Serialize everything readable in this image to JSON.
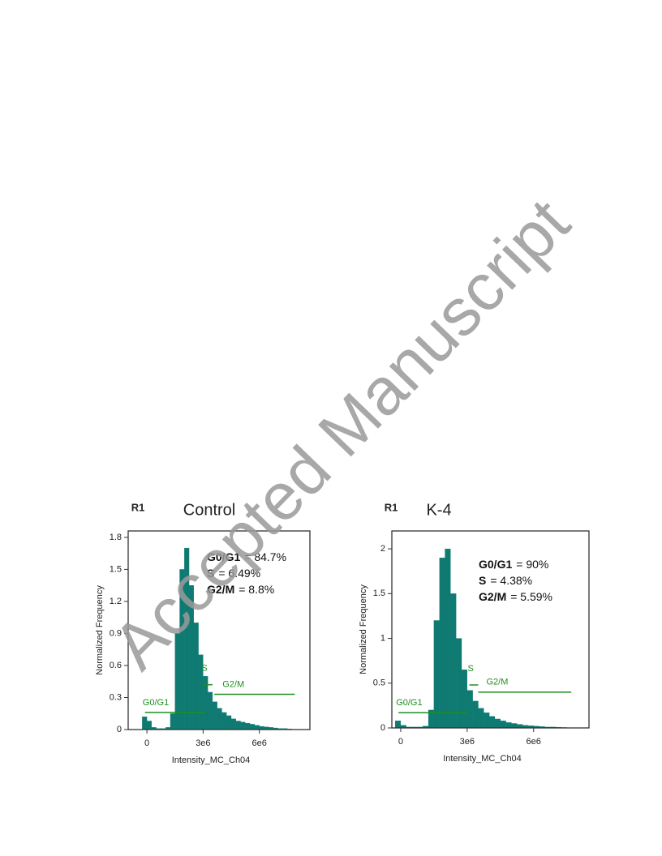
{
  "watermark": "Accepted Manuscript",
  "chart_data": [
    {
      "type": "histogram",
      "region": "R1",
      "title": "Control",
      "xlabel": "Intensity_MC_Ch04",
      "ylabel": "Normalized Frequency",
      "color": "#0e7a72",
      "gate_color": "#1f8f1f",
      "bins": [
        -250000,
        0,
        250000,
        500000,
        750000,
        1000000,
        1250000,
        1500000,
        1750000,
        2000000,
        2250000,
        2500000,
        2750000,
        3000000,
        3250000,
        3500000,
        3750000,
        4000000,
        4250000,
        4500000,
        4750000,
        5000000,
        5250000,
        5500000,
        5750000,
        6000000,
        6250000,
        6500000,
        6750000,
        7000000,
        7250000,
        7500000,
        7750000
      ],
      "counts": [
        0.12,
        0.08,
        0.02,
        0.01,
        0.01,
        0.02,
        0.15,
        0.9,
        1.5,
        1.7,
        1.35,
        1.0,
        0.7,
        0.5,
        0.35,
        0.26,
        0.2,
        0.16,
        0.13,
        0.1,
        0.08,
        0.07,
        0.06,
        0.05,
        0.04,
        0.03,
        0.025,
        0.02,
        0.015,
        0.01,
        0.01,
        0.005
      ],
      "xlim": [
        -1000000,
        8700000
      ],
      "ylim": [
        0,
        1.86
      ],
      "xticks": [
        0,
        {
          "value": 3000000,
          "label": "3e6"
        },
        {
          "value": 6000000,
          "label": "6e6"
        }
      ],
      "yticks": [
        0,
        0.3,
        0.6,
        0.9,
        1.2,
        1.5,
        1.8
      ],
      "gates": [
        {
          "label": "G0/G1",
          "x": [
            -100000,
            3100000
          ],
          "y": 0.16
        },
        {
          "label": "S",
          "x": [
            3000000,
            3500000
          ],
          "y": 0.42
        },
        {
          "label": "G2/M",
          "x": [
            3600000,
            7900000
          ],
          "y": 0.33
        }
      ],
      "stats": [
        {
          "label": "G0/G1",
          "text": "= 84.7%"
        },
        {
          "label": "S",
          "text": "= 6.49%"
        },
        {
          "label": "G2/M",
          "text": "= 8.8%"
        }
      ]
    },
    {
      "type": "histogram",
      "region": "R1",
      "title": "K-4",
      "xlabel": "Intensity_MC_Ch04",
      "ylabel": "Normalized Frequency",
      "color": "#0e7a72",
      "gate_color": "#1f8f1f",
      "bins": [
        -250000,
        0,
        250000,
        500000,
        750000,
        1000000,
        1250000,
        1500000,
        1750000,
        2000000,
        2250000,
        2500000,
        2750000,
        3000000,
        3250000,
        3500000,
        3750000,
        4000000,
        4250000,
        4500000,
        4750000,
        5000000,
        5250000,
        5500000,
        5750000,
        6000000,
        6250000,
        6500000,
        6750000,
        7000000,
        7250000,
        7500000,
        7750000
      ],
      "counts": [
        0.08,
        0.03,
        0.01,
        0.01,
        0.01,
        0.02,
        0.2,
        1.2,
        1.9,
        2.0,
        1.5,
        1.0,
        0.65,
        0.42,
        0.3,
        0.22,
        0.17,
        0.13,
        0.1,
        0.08,
        0.06,
        0.05,
        0.04,
        0.03,
        0.025,
        0.02,
        0.015,
        0.01,
        0.01,
        0.008,
        0.005,
        0.003
      ],
      "xlim": [
        -400000,
        8500000
      ],
      "ylim": [
        0,
        2.2
      ],
      "xticks": [
        0,
        {
          "value": 3000000,
          "label": "3e6"
        },
        {
          "value": 6000000,
          "label": "6e6"
        }
      ],
      "yticks": [
        0,
        0.5,
        1,
        1.5,
        2
      ],
      "gates": [
        {
          "label": "G0/G1",
          "x": [
            -100000,
            3000000
          ],
          "y": 0.17
        },
        {
          "label": "S",
          "x": [
            3100000,
            3500000
          ],
          "y": 0.48
        },
        {
          "label": "G2/M",
          "x": [
            3500000,
            7700000
          ],
          "y": 0.4
        }
      ],
      "stats": [
        {
          "label": "G0/G1",
          "text": "= 90%"
        },
        {
          "label": "S",
          "text": "= 4.38%"
        },
        {
          "label": "G2/M",
          "text": "= 5.59%"
        }
      ]
    }
  ]
}
